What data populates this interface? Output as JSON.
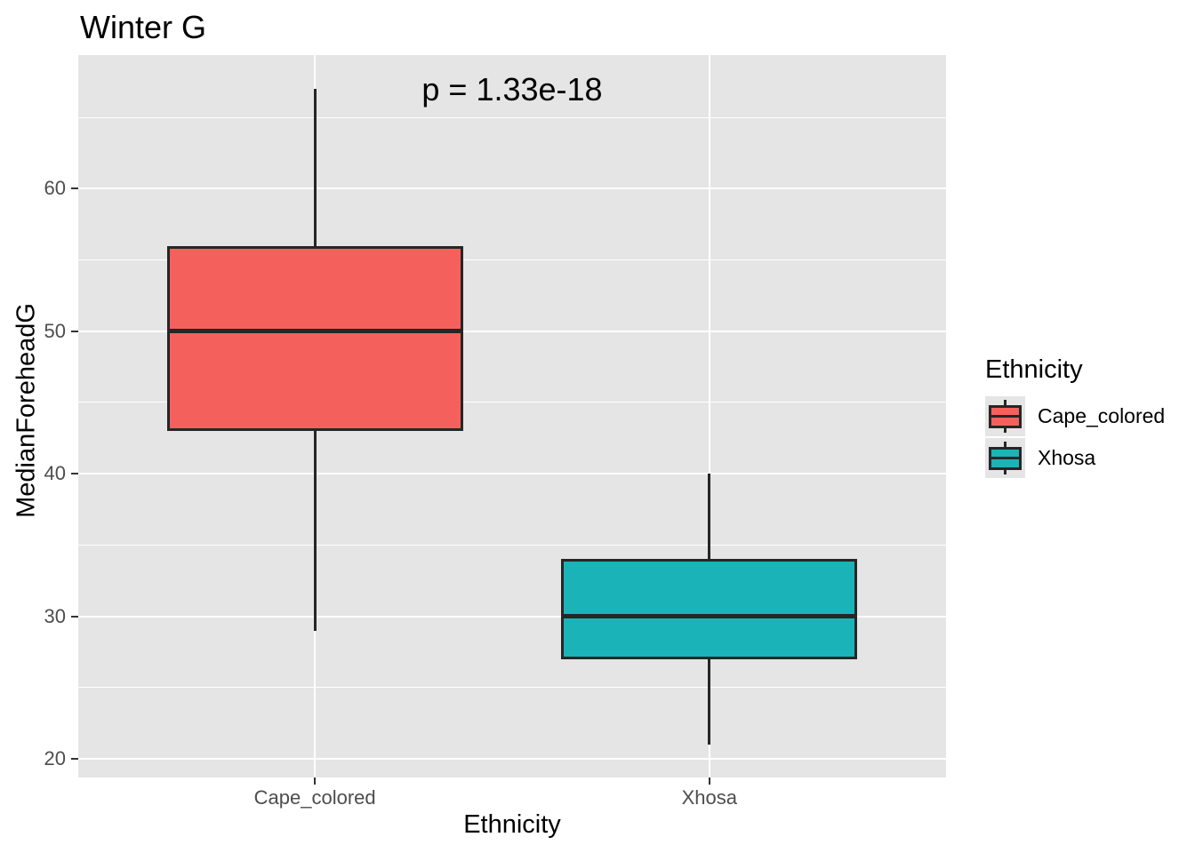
{
  "title": "Winter G",
  "annotation": {
    "text": "p = 1.33e-18"
  },
  "axes": {
    "x_title": "Ethnicity",
    "y_title": "MedianForeheadG",
    "x_tick_labels": [
      "Cape_colored",
      "Xhosa"
    ],
    "y_tick_labels": [
      "20",
      "30",
      "40",
      "50",
      "60"
    ]
  },
  "legend": {
    "title": "Ethnicity",
    "items": [
      {
        "label": "Cape_colored",
        "color": "#F4615D"
      },
      {
        "label": "Xhosa",
        "color": "#1AB4B8"
      }
    ]
  },
  "colors": {
    "panel_background": "#E5E5E5",
    "gridline": "#FFFFFF",
    "box_outline": "#262626",
    "tick_label": "#4D4D4D",
    "cape_colored_fill": "#F4615D",
    "xhosa_fill": "#1AB4B8"
  },
  "chart_data": {
    "type": "boxplot",
    "title": "Winter G",
    "xlabel": "Ethnicity",
    "ylabel": "MedianForeheadG",
    "annotation": "p = 1.33e-18",
    "categories": [
      "Cape_colored",
      "Xhosa"
    ],
    "series": [
      {
        "name": "Cape_colored",
        "color": "#F4615D",
        "whisker_low": 29,
        "q1": 43,
        "median": 50,
        "q3": 56,
        "whisker_high": 67
      },
      {
        "name": "Xhosa",
        "color": "#1AB4B8",
        "whisker_low": 21,
        "q1": 27,
        "median": 30,
        "q3": 34,
        "whisker_high": 40
      }
    ],
    "y_major_ticks": [
      20,
      30,
      40,
      50,
      60
    ],
    "y_minor_gridlines": [
      25,
      35,
      45,
      55,
      65
    ],
    "ylim": [
      18.6875,
      69.375
    ],
    "grid": true,
    "legend_position": "right",
    "legend_title": "Ethnicity"
  }
}
